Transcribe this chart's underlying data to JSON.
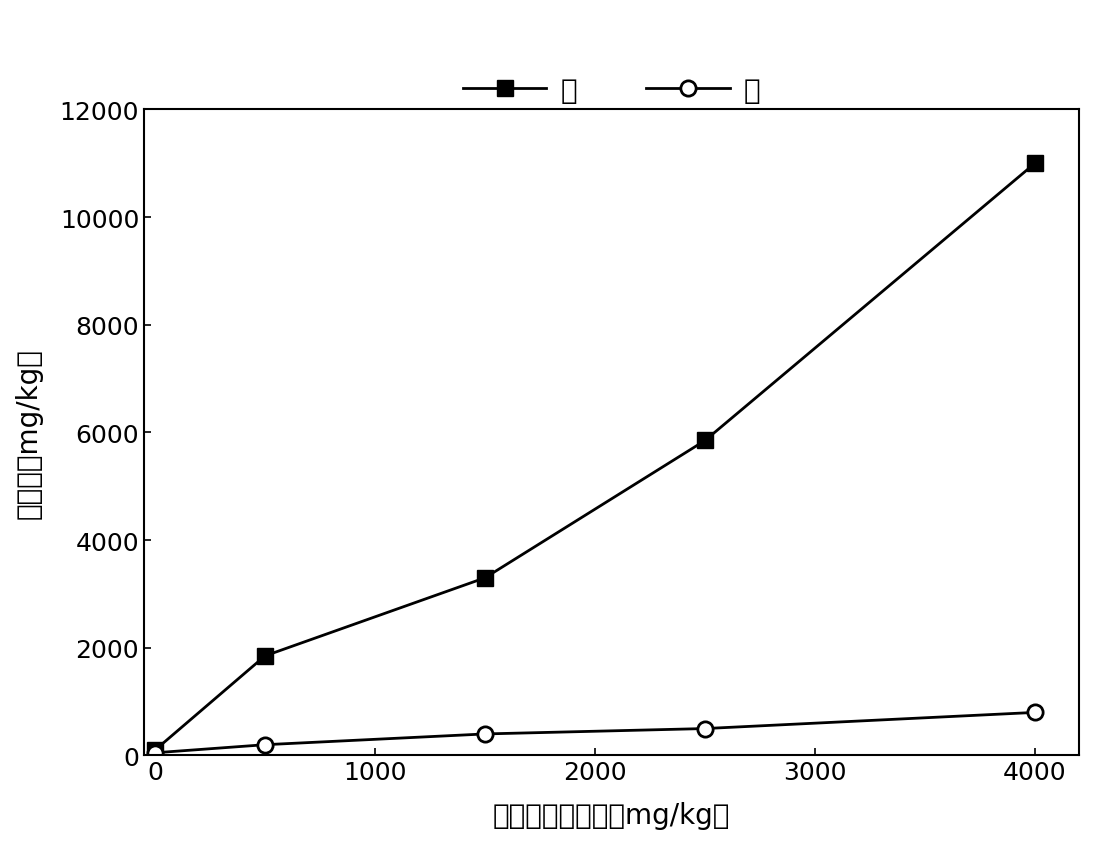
{
  "x": [
    0,
    500,
    1500,
    2500,
    4000
  ],
  "root_y": [
    100,
    1850,
    3300,
    5850,
    11000
  ],
  "leaf_y": [
    50,
    200,
    400,
    500,
    800
  ],
  "root_label": "根",
  "leaf_label": "叶",
  "xlabel": "土壤铅处理浓度（mg/kg）",
  "ylabel": "铅含量（mg/kg）",
  "xlim": [
    -50,
    4200
  ],
  "ylim": [
    0,
    12000
  ],
  "yticks": [
    0,
    2000,
    4000,
    6000,
    8000,
    10000,
    12000
  ],
  "xticks": [
    0,
    1000,
    2000,
    3000,
    4000
  ],
  "axis_label_fontsize": 20,
  "tick_fontsize": 18,
  "legend_fontsize": 20,
  "line_color": "#000000",
  "background_color": "#ffffff"
}
